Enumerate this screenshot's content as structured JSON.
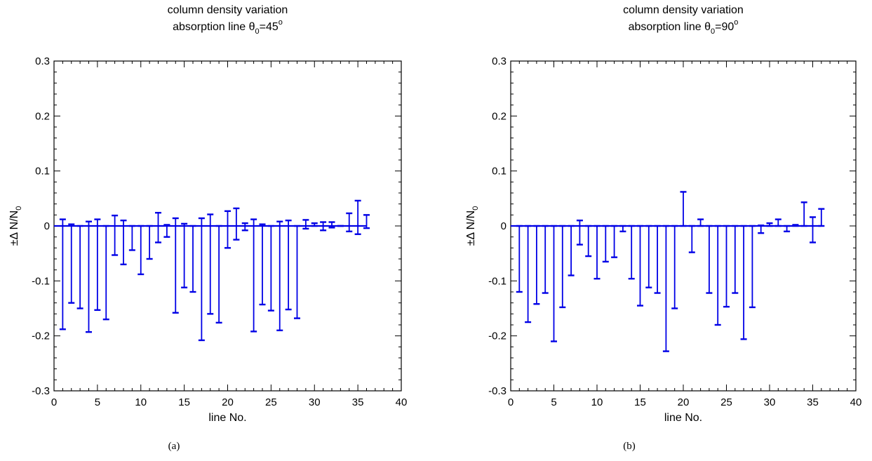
{
  "chart_data": [
    {
      "type": "errorbar",
      "title_line1": "column density variation",
      "title_line2": {
        "text": "absorption line θ",
        "subscript": "0",
        "value": "=45",
        "superscript": "o"
      },
      "xlabel": "line No.",
      "ylabel": {
        "prefix": "±Δ N/N",
        "subscript": "0"
      },
      "caption": "(a)",
      "xlim": [
        0,
        40
      ],
      "ylim": [
        -0.3,
        0.3
      ],
      "xticks": [
        0,
        5,
        10,
        15,
        20,
        25,
        30,
        35,
        40
      ],
      "yticks": [
        -0.3,
        -0.2,
        -0.1,
        0,
        0.1,
        0.2,
        0.3
      ],
      "xtick_labels": [
        "0",
        "5",
        "10",
        "15",
        "20",
        "25",
        "30",
        "35",
        "40"
      ],
      "ytick_labels": [
        "-0.3",
        "-0.2",
        "-0.1",
        "0",
        "0.1",
        "0.2",
        "0.3"
      ],
      "baseline": [
        0,
        36
      ],
      "color": "#0000e6",
      "x": [
        1,
        2,
        3,
        4,
        5,
        6,
        7,
        8,
        9,
        10,
        11,
        12,
        13,
        14,
        15,
        16,
        17,
        18,
        19,
        20,
        21,
        22,
        23,
        24,
        25,
        26,
        27,
        28,
        29,
        30,
        31,
        32,
        33,
        34,
        35,
        36
      ],
      "upper": [
        0.012,
        0.003,
        0.0,
        0.008,
        0.012,
        0.0,
        0.019,
        0.01,
        0.0,
        0.0,
        0.0,
        0.024,
        0.002,
        0.014,
        0.004,
        0.0,
        0.014,
        0.021,
        0.0,
        0.027,
        0.032,
        0.005,
        0.012,
        0.003,
        0.0,
        0.008,
        0.01,
        0.0,
        0.011,
        0.005,
        0.007,
        0.007,
        0.0,
        0.023,
        0.046,
        0.02
      ],
      "lower": [
        -0.188,
        -0.14,
        -0.15,
        -0.193,
        -0.153,
        -0.17,
        -0.053,
        -0.07,
        -0.044,
        -0.088,
        -0.06,
        -0.03,
        -0.02,
        -0.158,
        -0.112,
        -0.12,
        -0.208,
        -0.16,
        -0.176,
        -0.04,
        -0.025,
        -0.008,
        -0.192,
        -0.143,
        -0.154,
        -0.19,
        -0.152,
        -0.168,
        -0.005,
        0.0,
        -0.008,
        -0.003,
        0.0,
        -0.01,
        -0.015,
        -0.004
      ]
    },
    {
      "type": "errorbar",
      "title_line1": "column density variation",
      "title_line2": {
        "text": "absorption line θ",
        "subscript": "0",
        "value": "=90",
        "superscript": "o"
      },
      "xlabel": "line No.",
      "ylabel": {
        "prefix": "±Δ N/N",
        "subscript": "0"
      },
      "caption": "(b)",
      "xlim": [
        0,
        40
      ],
      "ylim": [
        -0.3,
        0.3
      ],
      "xticks": [
        0,
        5,
        10,
        15,
        20,
        25,
        30,
        35,
        40
      ],
      "yticks": [
        -0.3,
        -0.2,
        -0.1,
        0,
        0.1,
        0.2,
        0.3
      ],
      "xtick_labels": [
        "0",
        "5",
        "10",
        "15",
        "20",
        "25",
        "30",
        "35",
        "40"
      ],
      "ytick_labels": [
        "-0.3",
        "-0.2",
        "-0.1",
        "0",
        "0.1",
        "0.2",
        "0.3"
      ],
      "baseline": [
        0,
        36
      ],
      "color": "#0000e6",
      "x": [
        1,
        2,
        3,
        4,
        5,
        6,
        7,
        8,
        9,
        10,
        11,
        12,
        13,
        14,
        15,
        16,
        17,
        18,
        19,
        20,
        21,
        22,
        23,
        24,
        25,
        26,
        27,
        28,
        29,
        30,
        31,
        32,
        33,
        34,
        35,
        36
      ],
      "upper": [
        0.0,
        0.0,
        0.0,
        0.0,
        0.0,
        0.0,
        0.0,
        0.01,
        0.0,
        0.0,
        0.0,
        0.0,
        0.0,
        0.0,
        0.0,
        0.0,
        0.0,
        0.0,
        0.0,
        0.062,
        0.0,
        0.012,
        0.0,
        0.0,
        0.0,
        0.0,
        0.0,
        0.0,
        0.001,
        0.005,
        0.012,
        0.0,
        0.002,
        0.043,
        0.016,
        0.031
      ],
      "lower": [
        -0.12,
        -0.175,
        -0.142,
        -0.122,
        -0.21,
        -0.148,
        -0.09,
        -0.034,
        -0.055,
        -0.096,
        -0.065,
        -0.057,
        -0.01,
        -0.096,
        -0.145,
        -0.112,
        -0.122,
        -0.228,
        -0.15,
        0.0,
        -0.048,
        0.0,
        -0.122,
        -0.18,
        -0.147,
        -0.122,
        -0.206,
        -0.148,
        -0.013,
        0.0,
        0.0,
        -0.01,
        0.0,
        0.0,
        -0.03,
        0.0
      ]
    }
  ]
}
